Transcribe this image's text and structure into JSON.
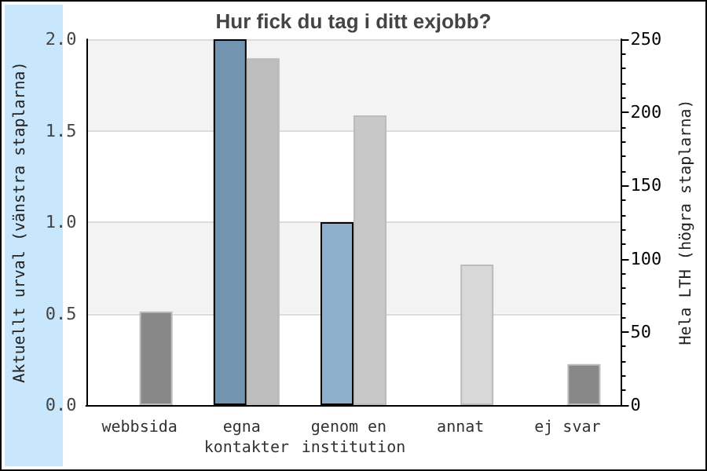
{
  "chart_data": {
    "type": "bar",
    "title": "Hur fick du tag i ditt exjobb?",
    "ylabel": "Aktuellt urval (vänstra staplarna)",
    "y2label": "Hela LTH (högra staplarna)",
    "categories": [
      "webbsida",
      "egna kontakter",
      "genom en institution",
      "annat",
      "ej svar"
    ],
    "series": [
      {
        "colors": [
          "#7394b0",
          "#7394b0",
          "#8fb0cc",
          "#8fb0cc",
          "#8fb0cc"
        ],
        "values": [
          0,
          2,
          1,
          0,
          0
        ]
      },
      {
        "axis": "y2",
        "colors": [
          "#888888",
          "#bdbdbd",
          "#c8c8c8",
          "#d8d8d8",
          "#888888"
        ],
        "values": [
          64,
          237,
          198,
          96,
          28
        ]
      }
    ],
    "ylim": [
      0,
      2
    ],
    "yticks": [
      {
        "value": 0,
        "label": "0.0"
      },
      {
        "value": 0.5,
        "label": "0.5"
      },
      {
        "value": 1,
        "label": "1.0"
      },
      {
        "value": 1.5,
        "label": "1.5"
      },
      {
        "value": 2,
        "label": "2.0"
      }
    ],
    "y2lim": [
      0,
      250
    ],
    "y2ticks": [
      0,
      50,
      100,
      150,
      200,
      250
    ],
    "grid": "y"
  }
}
